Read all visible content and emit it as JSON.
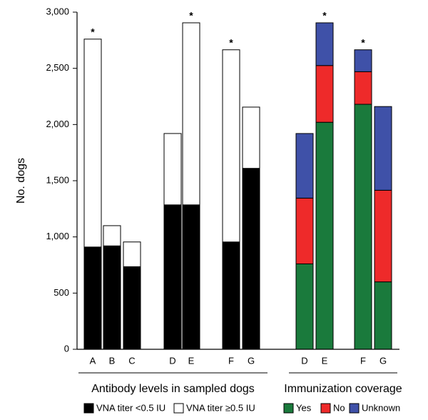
{
  "chart_data": [
    {
      "type": "stacked_bar",
      "y_label": "No. dogs",
      "x_label": "Antibody levels in sampled dogs",
      "categories": [
        "A",
        "B",
        "C",
        "D",
        "E",
        "F",
        "G"
      ],
      "bar_labels": [
        "*",
        null,
        null,
        null,
        "*",
        "*",
        null
      ],
      "series": [
        {
          "name": "VNA titer <0.5 IU",
          "color": "#000000",
          "values": [
            910,
            920,
            735,
            1285,
            1285,
            955,
            1610
          ]
        },
        {
          "name": "VNA titer ≥0.5 IU",
          "color": "#ffffff",
          "values": [
            1850,
            180,
            220,
            635,
            1620,
            1710,
            545
          ]
        }
      ],
      "ylim": [
        0,
        3000
      ],
      "yticks": [
        0,
        500,
        {
          "value": 1000,
          "label": "1,000"
        },
        {
          "value": 1500,
          "label": "1,500"
        },
        {
          "value": 2000,
          "label": "2,000"
        },
        {
          "value": 2500,
          "label": "2,500"
        },
        {
          "value": 3000,
          "label": "3,000"
        }
      ]
    },
    {
      "type": "stacked_bar",
      "x_label": "Immunization coverage",
      "categories": [
        "D",
        "E",
        "F",
        "G"
      ],
      "bar_labels": [
        null,
        "*",
        "*",
        null
      ],
      "series": [
        {
          "name": "Yes",
          "color": "#1a7a3c",
          "values": [
            760,
            2020,
            2180,
            600
          ]
        },
        {
          "name": "No",
          "color": "#ee2a2a",
          "values": [
            585,
            505,
            290,
            815
          ]
        },
        {
          "name": "Unknown",
          "color": "#3f51a8",
          "values": [
            575,
            380,
            195,
            745
          ]
        }
      ],
      "ylim": [
        0,
        3000
      ]
    }
  ]
}
